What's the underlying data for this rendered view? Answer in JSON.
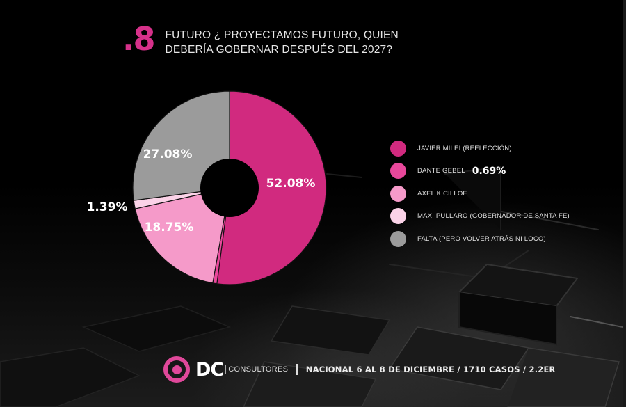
{
  "header": {
    "number": ".8",
    "title": "FUTURO ¿ PROYECTAMOS FUTURO, QUIEN DEBERÍA GOBERNAR DESPUÉS DEL 2027?"
  },
  "chart_data": {
    "type": "pie",
    "variant": "donut",
    "title": "FUTURO ¿ PROYECTAMOS FUTURO, QUIEN DEBERÍA GOBERNAR DESPUÉS DEL 2027?",
    "start_angle": "12 o'clock, clockwise",
    "categories": [
      "JAVIER MILEI (REELECCIÓN)",
      "DANTE GEBEL",
      "AXEL KICILLOF",
      "MAXI PULLARO (GOBERNADOR DE SANTA FE)",
      "FALTA (PERO VOLVER ATRÁS NI LOCO)"
    ],
    "values": [
      52.08,
      0.69,
      18.75,
      1.39,
      27.08
    ],
    "colors": [
      "#d12a7f",
      "#e8489b",
      "#f59ac9",
      "#fbd3e8",
      "#9b9b9b"
    ],
    "data_labels": [
      "52.08%",
      "0.69%",
      "18.75%",
      "1.39%",
      "27.08%"
    ],
    "legend_position": "right"
  },
  "legend": {
    "items": [
      {
        "label": "JAVIER MILEI (REELECCIÓN)",
        "color": "#d12a7f",
        "extra": ""
      },
      {
        "label": "DANTE GEBEL",
        "color": "#e8489b",
        "extra": "0.69%"
      },
      {
        "label": "AXEL KICILLOF",
        "color": "#f59ac9",
        "extra": ""
      },
      {
        "label": "MAXI PULLARO (GOBERNADOR DE SANTA FE)",
        "color": "#fbd3e8",
        "extra": ""
      },
      {
        "label": "FALTA (PERO VOLVER ATRÁS NI LOCO)",
        "color": "#9b9b9b",
        "extra": ""
      }
    ]
  },
  "footer": {
    "brand": "DC",
    "brand_sub": "CONSULTORES",
    "details": "NACIONAL 6 AL 8 DE DICIEMBRE / 1710 CASOS / 2.2ER",
    "logo_color": "#e0489a"
  },
  "colors": {
    "accent": "#d6318a",
    "background": "#000000"
  }
}
